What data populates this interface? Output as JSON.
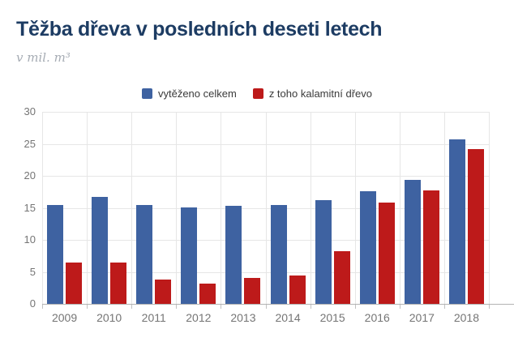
{
  "header": {
    "title": "Těžba dřeva v posledních deseti letech",
    "subtitle": "v mil. m³"
  },
  "legend": [
    {
      "label": "vytěženo celkem",
      "color": "#3e62a1"
    },
    {
      "label": "z toho kalamitní dřevo",
      "color": "#bd1a1a"
    }
  ],
  "colors": {
    "title": "#1d3c63",
    "subtitle": "#a6acb4",
    "series_blue": "#3e62a1",
    "series_red": "#bd1a1a",
    "gridline": "#e6e6e6",
    "axis_line": "#b3b3b3",
    "axis_text": "#757575"
  },
  "chart_data": {
    "type": "bar",
    "title": "Těžba dřeva v posledních deseti letech",
    "subtitle": "v mil. m³",
    "categories": [
      "2009",
      "2010",
      "2011",
      "2012",
      "2013",
      "2014",
      "2015",
      "2016",
      "2017",
      "2018"
    ],
    "series": [
      {
        "name": "vytěženo celkem",
        "color": "#3e62a1",
        "values": [
          15.4,
          16.7,
          15.4,
          15.1,
          15.3,
          15.4,
          16.2,
          17.6,
          19.4,
          25.7
        ]
      },
      {
        "name": "z toho kalamitní dřevo",
        "color": "#bd1a1a",
        "values": [
          6.5,
          6.4,
          3.8,
          3.2,
          4.0,
          4.4,
          8.2,
          15.8,
          17.7,
          24.2
        ]
      }
    ],
    "xlabel": "",
    "ylabel": "v mil. m³",
    "ylim": [
      0,
      30
    ],
    "y_ticks": [
      0,
      5,
      10,
      15,
      20,
      25,
      30
    ],
    "grid": true,
    "legend_position": "top"
  }
}
